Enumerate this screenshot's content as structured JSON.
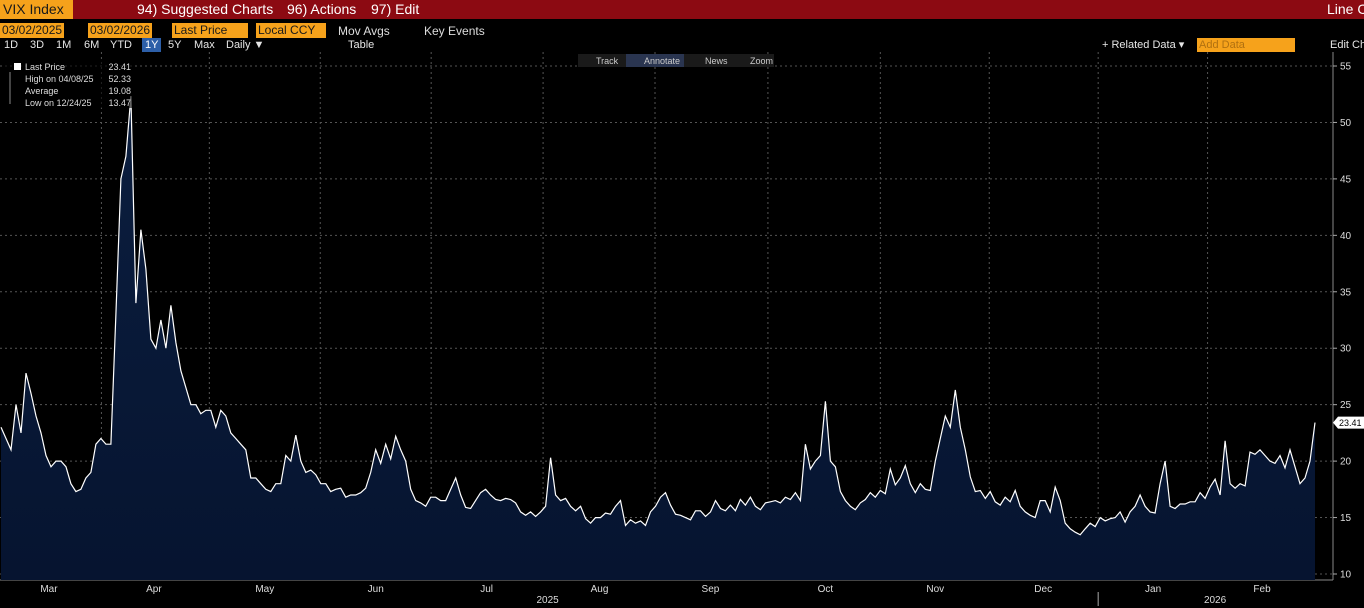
{
  "toolbar": {
    "ticker": "VIX Index",
    "menus": [
      "94) Suggested Charts",
      "96) Actions",
      "97) Edit"
    ],
    "right": "Line C"
  },
  "controls": {
    "start": "03/02/2025",
    "end": "03/02/2026",
    "field": "Last Price",
    "currency": "Local CCY",
    "mov_avgs": "Mov Avgs",
    "key_events": "Key Events",
    "periods": [
      "1D",
      "3D",
      "1M",
      "6M",
      "YTD",
      "1Y",
      "5Y",
      "Max"
    ],
    "frequency": "Daily ▼",
    "table": "Table",
    "related": "+ Related Data ▾",
    "add_data": "Add Data",
    "edit": "Edit Ch"
  },
  "chart_tools": [
    "Track",
    "Annotate",
    "News",
    "Zoom"
  ],
  "chart_data": {
    "type": "area",
    "color": "#ffffff",
    "fill": "#0b1e3f",
    "grid": true,
    "stats": [
      {
        "label": "Last Price",
        "value": 23.41
      },
      {
        "label": "High on 04/08/25",
        "value": 52.33
      },
      {
        "label": "Average",
        "value": 19.08
      },
      {
        "label": "Low on 12/24/25",
        "value": 13.47
      }
    ],
    "values": [
      23,
      22,
      21,
      25,
      22.5,
      27.8,
      26,
      24,
      22.5,
      20.5,
      19.5,
      20,
      20,
      19.5,
      18,
      17.3,
      17.5,
      18.5,
      19,
      21.5,
      22,
      21.5,
      21.5,
      33,
      45,
      47,
      52.33,
      34,
      40.5,
      37,
      30.8,
      30,
      32.5,
      30,
      33.8,
      30.5,
      28,
      26.5,
      25,
      25,
      24.2,
      24.5,
      24.5,
      23,
      24.5,
      24,
      22.5,
      22,
      21.5,
      21,
      18.5,
      18.5,
      18,
      17.5,
      17.3,
      18,
      18,
      20.5,
      20,
      22.3,
      20,
      19,
      19.2,
      18.8,
      18,
      18,
      17.3,
      17.5,
      17.6,
      16.8,
      17,
      17,
      17.2,
      17.6,
      19,
      21,
      19.8,
      21.5,
      20.2,
      22.2,
      21,
      20,
      17.5,
      16.5,
      16.3,
      16,
      16.8,
      16.8,
      16.5,
      16.5,
      17.5,
      18.5,
      17,
      15.9,
      15.8,
      16.5,
      17.2,
      17.5,
      17,
      16.6,
      16.5,
      16.7,
      16.6,
      16.3,
      15.5,
      15.2,
      15.5,
      15.1,
      15.5,
      16,
      20.3,
      17,
      16.5,
      16.7,
      16,
      15.6,
      16,
      14.9,
      14.5,
      15,
      15,
      15.4,
      15.3,
      16,
      16.5,
      14.3,
      14.8,
      14.5,
      14.7,
      14.3,
      15.5,
      16,
      16.8,
      17.2,
      16.1,
      15.3,
      15.2,
      15,
      14.8,
      15.6,
      15.6,
      15.1,
      15.5,
      16.5,
      15.8,
      15.6,
      16.1,
      15.6,
      16.6,
      16.1,
      16.8,
      16,
      15.7,
      16.3,
      16.4,
      16.5,
      16.3,
      16.8,
      16.6,
      17.2,
      16.5,
      21.5,
      19.3,
      20,
      20.5,
      25.3,
      20,
      19.5,
      17.3,
      16.5,
      16,
      15.7,
      16.3,
      16.6,
      17.2,
      16.8,
      17.4,
      17.1,
      19.3,
      17.9,
      18.5,
      19.6,
      18,
      17.2,
      18,
      17.5,
      17.4,
      20,
      22,
      24,
      23,
      26.3,
      23,
      21,
      18.6,
      17.3,
      17.4,
      16.7,
      17.3,
      16.4,
      16.1,
      16.8,
      16.4,
      17.4,
      16,
      15.5,
      15.2,
      15,
      16.5,
      16.5,
      15.5,
      17.7,
      16.5,
      14.5,
      14,
      13.7,
      13.47,
      14,
      14.5,
      14.2,
      15,
      14.7,
      14.9,
      15,
      15.5,
      14.6,
      15.5,
      16,
      17,
      16,
      15.5,
      15.4,
      18,
      20,
      16,
      15.8,
      16.2,
      16.2,
      16.4,
      16.4,
      17.2,
      16.7,
      17.7,
      18.4,
      17,
      21.8,
      18,
      17.6,
      18,
      17.8,
      20.8,
      20.6,
      21,
      20.5,
      20,
      19.8,
      20.5,
      19.4,
      21,
      19.5,
      18,
      18.5,
      20,
      23.41
    ],
    "xticks": [
      {
        "value": 9.6,
        "label": "Mar"
      },
      {
        "value": 30.6,
        "label": "Apr"
      },
      {
        "value": 52.8,
        "label": "May"
      },
      {
        "value": 75,
        "label": "Jun"
      },
      {
        "value": 97.2,
        "label": "Jul"
      },
      {
        "value": 119.8,
        "label": "Aug"
      },
      {
        "value": 142,
        "label": "Sep"
      },
      {
        "value": 165,
        "label": "Oct"
      },
      {
        "value": 187,
        "label": "Nov"
      },
      {
        "value": 208.6,
        "label": "Dec"
      },
      {
        "value": 230.6,
        "label": "Jan"
      },
      {
        "value": 252.4,
        "label": "Feb"
      }
    ],
    "year_ticks": [
      {
        "value": 109.4,
        "label": "2025"
      },
      {
        "value": 243,
        "label": "2026"
      }
    ],
    "ylim": [
      10,
      55
    ],
    "yticks": [
      10,
      15,
      20,
      25,
      30,
      35,
      40,
      45,
      50,
      55
    ]
  }
}
